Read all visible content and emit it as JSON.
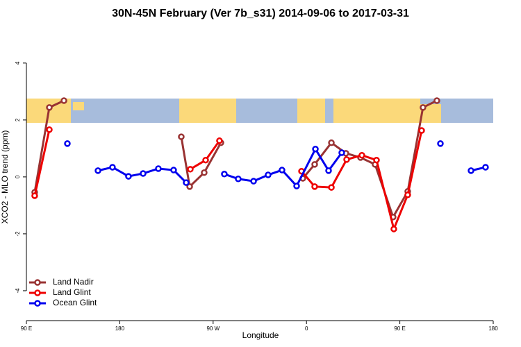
{
  "chart_data": {
    "type": "line",
    "title": "30N-45N February (Ver 7b_s31)   2014-09-06 to 2017-03-31",
    "x_label": "Longitude",
    "y_label": "XCO2 - MLO trend (ppm)",
    "xlim": [
      90,
      540
    ],
    "xticks": [
      {
        "value": 90,
        "label": "90 E"
      },
      180,
      {
        "value": 270,
        "label": "90 W"
      },
      {
        "value": 360,
        "label": "0"
      },
      {
        "value": 450,
        "label": "90 E"
      },
      {
        "value": 540,
        "label": "180"
      }
    ],
    "ylim": [
      -5.05,
      5.24
    ],
    "yticks": [
      -4,
      -2,
      0,
      2,
      4
    ],
    "legend": "bottom-left",
    "series": [
      {
        "name": "Land Nadir",
        "color": "#993333",
        "x": [
          98.0,
          112.1,
          126.2,
          null,
          239.3,
          247.4,
          261.4,
          277.5,
          null,
          356.5,
          367.9,
          384.0,
          398.0,
          412.1,
          426.1,
          443.5,
          457.6,
          472.3,
          485.7
        ],
        "values": [
          -0.54,
          2.44,
          2.68,
          null,
          1.41,
          -0.34,
          0.15,
          1.2,
          null,
          -0.05,
          0.44,
          1.2,
          0.83,
          0.68,
          0.44,
          -1.41,
          -0.51,
          2.44,
          2.68
        ]
      },
      {
        "name": "Land Glint",
        "color": "#ee0000",
        "x": [
          98.0,
          112.1,
          null,
          248.0,
          262.8,
          276.1,
          null,
          355.2,
          367.9,
          384.0,
          398.7,
          413.4,
          427.5,
          444.2,
          457.6,
          471.0
        ],
        "values": [
          -0.66,
          1.66,
          null,
          0.27,
          0.59,
          1.27,
          null,
          0.2,
          -0.34,
          -0.37,
          0.61,
          0.76,
          0.59,
          -1.83,
          -0.63,
          1.63
        ]
      },
      {
        "name": "Ocean Glint",
        "color": "#0000ee",
        "x": [
          129.5,
          null,
          159.0,
          173.0,
          188.4,
          202.5,
          217.2,
          231.9,
          244.0,
          null,
          280.8,
          294.2,
          309.0,
          323.0,
          336.4,
          350.5,
          368.6,
          381.3,
          394.0,
          null,
          489.1,
          null,
          518.6,
          532.6
        ],
        "values": [
          1.17,
          null,
          0.22,
          0.34,
          0.02,
          0.12,
          0.29,
          0.24,
          -0.2,
          null,
          0.1,
          -0.07,
          -0.15,
          0.07,
          0.24,
          -0.32,
          0.98,
          0.22,
          0.85,
          null,
          1.17,
          null,
          0.22,
          0.34
        ]
      }
    ]
  }
}
